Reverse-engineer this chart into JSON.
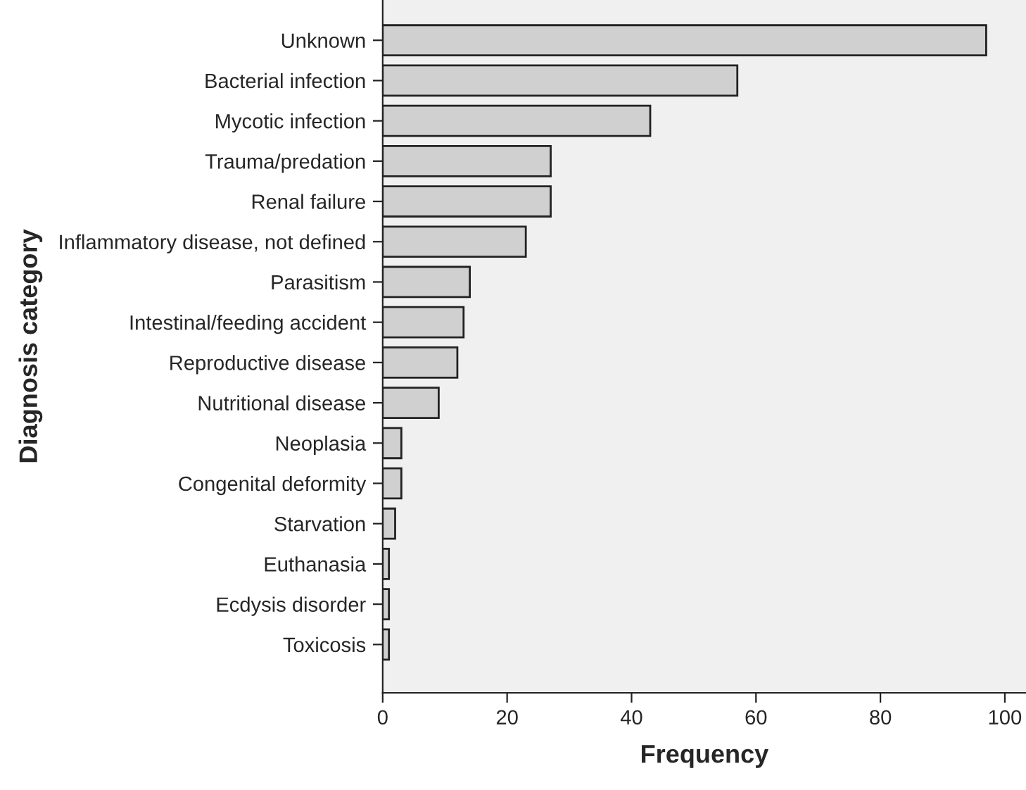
{
  "chart_data": {
    "type": "bar",
    "orientation": "horizontal",
    "xlabel": "Frequency",
    "ylabel": "Diagnosis category",
    "categories": [
      "Unknown",
      "Bacterial infection",
      "Mycotic infection",
      "Trauma/predation",
      "Renal failure",
      "Inflammatory disease, not defined",
      "Parasitism",
      "Intestinal/feeding accident",
      "Reproductive disease",
      "Nutritional disease",
      "Neoplasia",
      "Congenital deformity",
      "Starvation",
      "Euthanasia",
      "Ecdysis disorder",
      "Toxicosis"
    ],
    "values": [
      97,
      57,
      43,
      27,
      27,
      23,
      14,
      13,
      12,
      9,
      3,
      3,
      2,
      1,
      1,
      1
    ],
    "color": "#d0d0d0",
    "xlim": [
      0,
      103.4
    ],
    "xticks": [
      0,
      20,
      40,
      60,
      80,
      100
    ],
    "grid": false,
    "legend": false
  }
}
